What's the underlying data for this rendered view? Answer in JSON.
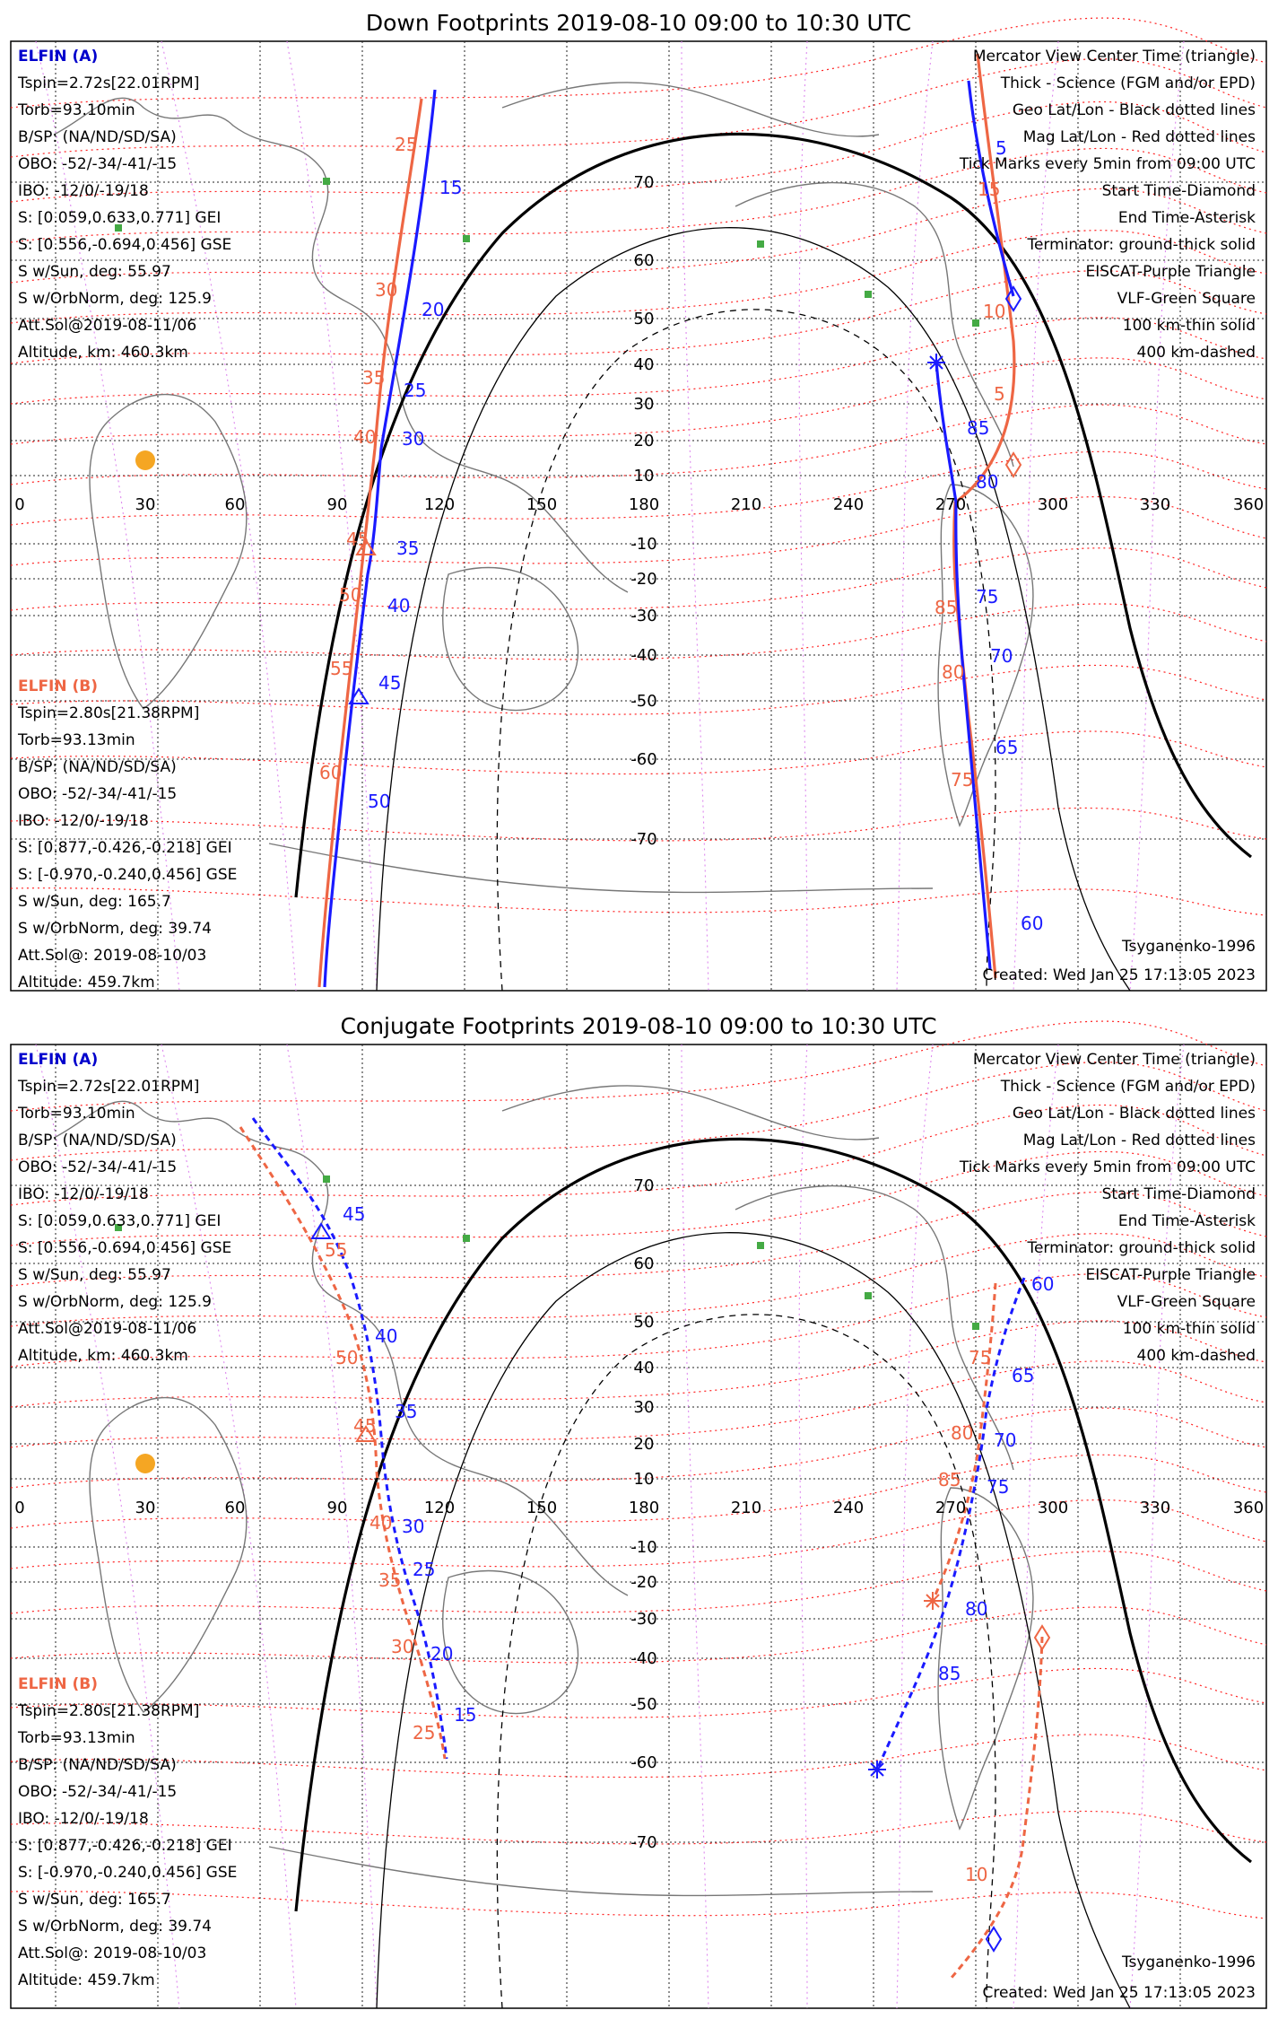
{
  "colors": {
    "elfin_a": "#1a1aff",
    "elfin_b": "#ee6644",
    "mag_grid": "#ff2222",
    "geo_grid": "#222222",
    "eiscat": "#dd88ee",
    "vlf": "#44aa44",
    "sun": "#f5a623"
  },
  "lon_ticks": [
    "0",
    "30",
    "60",
    "90",
    "120",
    "150",
    "180",
    "210",
    "240",
    "270",
    "300",
    "330",
    "360"
  ],
  "lat_ticks": [
    "70",
    "60",
    "50",
    "40",
    "30",
    "20",
    "10",
    "-10",
    "-20",
    "-30",
    "-40",
    "-50",
    "-60",
    "-70"
  ],
  "panels": [
    {
      "title": "Down Footprints 2019-08-10 09:00 to 10:30 UTC",
      "elfin_a": {
        "header": "ELFIN (A)",
        "lines": [
          "Tspin=2.72s[22.01RPM]",
          "Torb=93.10min",
          "B/SP: (NA/ND/SD/SA)",
          "OBO: -52/-34/-41/-15",
          "IBO: -12/0/-19/18",
          "S: [0.059,0.633,0.771] GEI",
          "S: [0.556,-0.694,0.456] GSE",
          "S w/Sun, deg: 55.97",
          "S w/OrbNorm, deg: 125.9",
          "Att.Sol@2019-08-11/06",
          "Altitude, km: 460.3km"
        ]
      },
      "elfin_b": {
        "header": "ELFIN (B)",
        "lines": [
          "Tspin=2.80s[21.38RPM]",
          "Torb=93.13min",
          "B/SP: (NA/ND/SD/SA)",
          "OBO: -52/-34/-41/-15",
          "IBO: -12/0/-19/18",
          "S: [0.877,-0.426,-0.218] GEI",
          "S: [-0.970,-0.240,0.456] GSE",
          "S w/Sun, deg: 165.7",
          "S w/OrbNorm, deg: 39.74",
          "Att.Sol@: 2019-08-10/03",
          "Altitude: 459.7km"
        ]
      },
      "legend": [
        {
          "text": "Mercator View Center Time (triangle)",
          "color": "#000000"
        },
        {
          "text": "Thick - Science (FGM and/or EPD)",
          "color": "#000000"
        },
        {
          "text": "Geo Lat/Lon - Black dotted lines",
          "color": "#000000"
        },
        {
          "text": "Mag Lat/Lon - Red dotted lines",
          "color": "#ff2222"
        },
        {
          "text": "Tick Marks every 5min from 09:00 UTC",
          "color": "#000000"
        },
        {
          "text": "Start Time-Diamond",
          "color": "#000000"
        },
        {
          "text": "End Time-Asterisk",
          "color": "#000000"
        },
        {
          "text": "Terminator: ground-thick solid",
          "color": "#000000"
        },
        {
          "text": "EISCAT-Purple Triangle",
          "color": "#dd88ee"
        },
        {
          "text": "VLF-Green Square",
          "color": "#44aa44"
        },
        {
          "text": "100 km-thin solid",
          "color": "#000000"
        },
        {
          "text": "400 km-dashed",
          "color": "#000000"
        }
      ],
      "model": "Tsyganenko-1996",
      "created": "Created: Wed Jan 25 17:13:05 2023",
      "labels_a": [
        "15",
        "20",
        "25",
        "30",
        "35",
        "40",
        "45",
        "50",
        "5",
        "85",
        "80",
        "75",
        "70",
        "65",
        "60"
      ],
      "labels_b": [
        "25",
        "30",
        "35",
        "40",
        "45",
        "50",
        "55",
        "60",
        "15",
        "10",
        "5",
        "85",
        "80",
        "75"
      ]
    },
    {
      "title": "Conjugate Footprints 2019-08-10 09:00 to 10:30 UTC",
      "elfin_a": {
        "header": "ELFIN (A)",
        "lines": [
          "Tspin=2.72s[22.01RPM]",
          "Torb=93.10min",
          "B/SP: (NA/ND/SD/SA)",
          "OBO: -52/-34/-41/-15",
          "IBO: -12/0/-19/18",
          "S: [0.059,0.633,0.771] GEI",
          "S: [0.556,-0.694,0.456] GSE",
          "S w/Sun, deg: 55.97",
          "S w/OrbNorm, deg: 125.9",
          "Att.Sol@2019-08-11/06",
          "Altitude, km: 460.3km"
        ]
      },
      "elfin_b": {
        "header": "ELFIN (B)",
        "lines": [
          "Tspin=2.80s[21.38RPM]",
          "Torb=93.13min",
          "B/SP: (NA/ND/SD/SA)",
          "OBO: -52/-34/-41/-15",
          "IBO: -12/0/-19/18",
          "S: [0.877,-0.426,-0.218] GEI",
          "S: [-0.970,-0.240,0.456] GSE",
          "S w/Sun, deg: 165.7",
          "S w/OrbNorm, deg: 39.74",
          "Att.Sol@: 2019-08-10/03",
          "Altitude: 459.7km"
        ]
      },
      "legend": [
        {
          "text": "Mercator View Center Time (triangle)",
          "color": "#000000"
        },
        {
          "text": "Thick - Science (FGM and/or EPD)",
          "color": "#000000"
        },
        {
          "text": "Geo Lat/Lon - Black dotted lines",
          "color": "#000000"
        },
        {
          "text": "Mag Lat/Lon - Red dotted lines",
          "color": "#ff2222"
        },
        {
          "text": "Tick Marks every 5min from 09:00 UTC",
          "color": "#000000"
        },
        {
          "text": "Start Time-Diamond",
          "color": "#000000"
        },
        {
          "text": "End Time-Asterisk",
          "color": "#000000"
        },
        {
          "text": "Terminator: ground-thick solid",
          "color": "#000000"
        },
        {
          "text": "EISCAT-Purple Triangle",
          "color": "#dd88ee"
        },
        {
          "text": "VLF-Green Square",
          "color": "#44aa44"
        },
        {
          "text": "100 km-thin solid",
          "color": "#000000"
        },
        {
          "text": "400 km-dashed",
          "color": "#000000"
        }
      ],
      "model": "Tsyganenko-1996",
      "created": "Created: Wed Jan 25 17:13:05 2023",
      "labels_a": [
        "45",
        "40",
        "35",
        "30",
        "25",
        "20",
        "15",
        "60",
        "65",
        "70",
        "75",
        "80",
        "85"
      ],
      "labels_b": [
        "55",
        "50",
        "45",
        "40",
        "35",
        "30",
        "25",
        "75",
        "80",
        "85",
        "10"
      ]
    }
  ]
}
